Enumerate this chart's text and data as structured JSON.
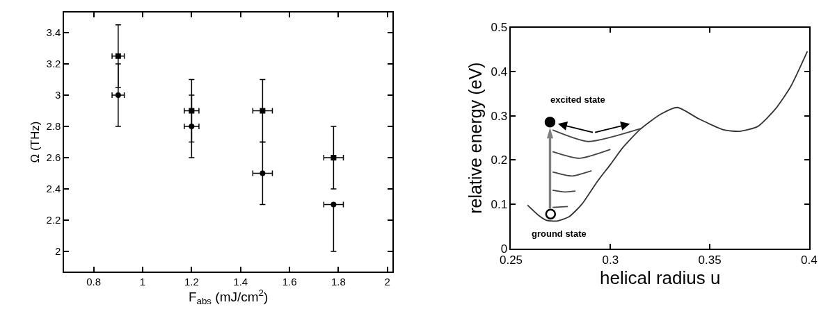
{
  "chart_data": [
    {
      "type": "scatter",
      "xlabel": "F$_{abs}$ (mJ/cm$^{2}$)",
      "ylabel": "Ω (THz)",
      "xlim": [
        0.68,
        2.02
      ],
      "xticks": [
        0.8,
        1.0,
        1.2,
        1.4,
        1.6,
        1.8,
        2.0
      ],
      "ylim": [
        1.87,
        3.53
      ],
      "yticks": [
        2.0,
        2.2,
        2.4,
        2.6,
        2.8,
        3.0,
        3.2,
        3.4
      ],
      "series": [
        {
          "color": "#000000",
          "marker": "square",
          "x": [
            0.9,
            1.2,
            1.49,
            1.78
          ],
          "values": [
            3.25,
            2.9,
            2.9,
            2.6
          ],
          "errors": [
            [
              3.05,
              3.45
            ],
            [
              2.7,
              3.1
            ],
            [
              2.7,
              3.1
            ],
            [
              2.4,
              2.8
            ]
          ],
          "xerrors": [
            0.025,
            0.03,
            0.04,
            0.04
          ]
        },
        {
          "color": "#000000",
          "marker": "circle",
          "x": [
            0.9,
            1.2,
            1.49,
            1.78
          ],
          "values": [
            3.0,
            2.8,
            2.5,
            2.3
          ],
          "errors": [
            [
              2.8,
              3.2
            ],
            [
              2.6,
              3.0
            ],
            [
              2.3,
              2.7
            ],
            [
              2.0,
              2.3
            ]
          ],
          "xerrors": [
            0.025,
            0.03,
            0.04,
            0.04
          ]
        }
      ]
    },
    {
      "type": "line",
      "xlabel": "helical radius u",
      "ylabel": "relative energy (eV)",
      "xlim": [
        0.25,
        0.4
      ],
      "xticks": [
        0.25,
        0.3,
        0.35,
        0.4
      ],
      "ylim": [
        0,
        0.5
      ],
      "yticks": [
        0,
        0.1,
        0.2,
        0.3,
        0.4,
        0.5
      ],
      "marker": "none",
      "line_style": "solid",
      "annotations": [
        {
          "text": "excited state",
          "x": 0.2696,
          "y": 0.286
        },
        {
          "text": "ground state",
          "x": 0.2699,
          "y": 0.078
        }
      ],
      "series": [
        {
          "color": "#333333",
          "x": [
            0.2583,
            0.2638,
            0.2677,
            0.2728,
            0.2792,
            0.2856,
            0.2933,
            0.3,
            0.3062,
            0.3151,
            0.3254,
            0.3337,
            0.3446,
            0.3574,
            0.3651,
            0.3741,
            0.3831,
            0.3908,
            0.3991
          ],
          "values": [
            0.098,
            0.075,
            0.064,
            0.062,
            0.072,
            0.1,
            0.151,
            0.19,
            0.228,
            0.27,
            0.304,
            0.319,
            0.293,
            0.268,
            0.265,
            0.276,
            0.316,
            0.367,
            0.446
          ]
        },
        {
          "color": "#444444",
          "x": [
            0.2709,
            0.2786
          ],
          "values": [
            0.093,
            0.095
          ]
        },
        {
          "color": "#444444",
          "x": [
            0.2709,
            0.2767,
            0.2824
          ],
          "values": [
            0.132,
            0.128,
            0.13
          ]
        },
        {
          "color": "#444444",
          "x": [
            0.2709,
            0.2805,
            0.2905
          ],
          "values": [
            0.173,
            0.164,
            0.176
          ]
        },
        {
          "color": "#444444",
          "x": [
            0.2709,
            0.2844,
            0.3
          ],
          "values": [
            0.219,
            0.204,
            0.224
          ]
        },
        {
          "color": "#444444",
          "x": [
            0.2709,
            0.2888,
            0.3158
          ],
          "values": [
            0.268,
            0.242,
            0.272
          ]
        },
        {
          "type": "scatter",
          "marker": "circle",
          "color": "#000000",
          "x": [
            0.2696
          ],
          "values": [
            0.286
          ]
        },
        {
          "type": "scatter",
          "marker": "circle",
          "color": "#ffffff",
          "x": [
            0.2699
          ],
          "values": [
            0.078
          ]
        }
      ]
    }
  ]
}
